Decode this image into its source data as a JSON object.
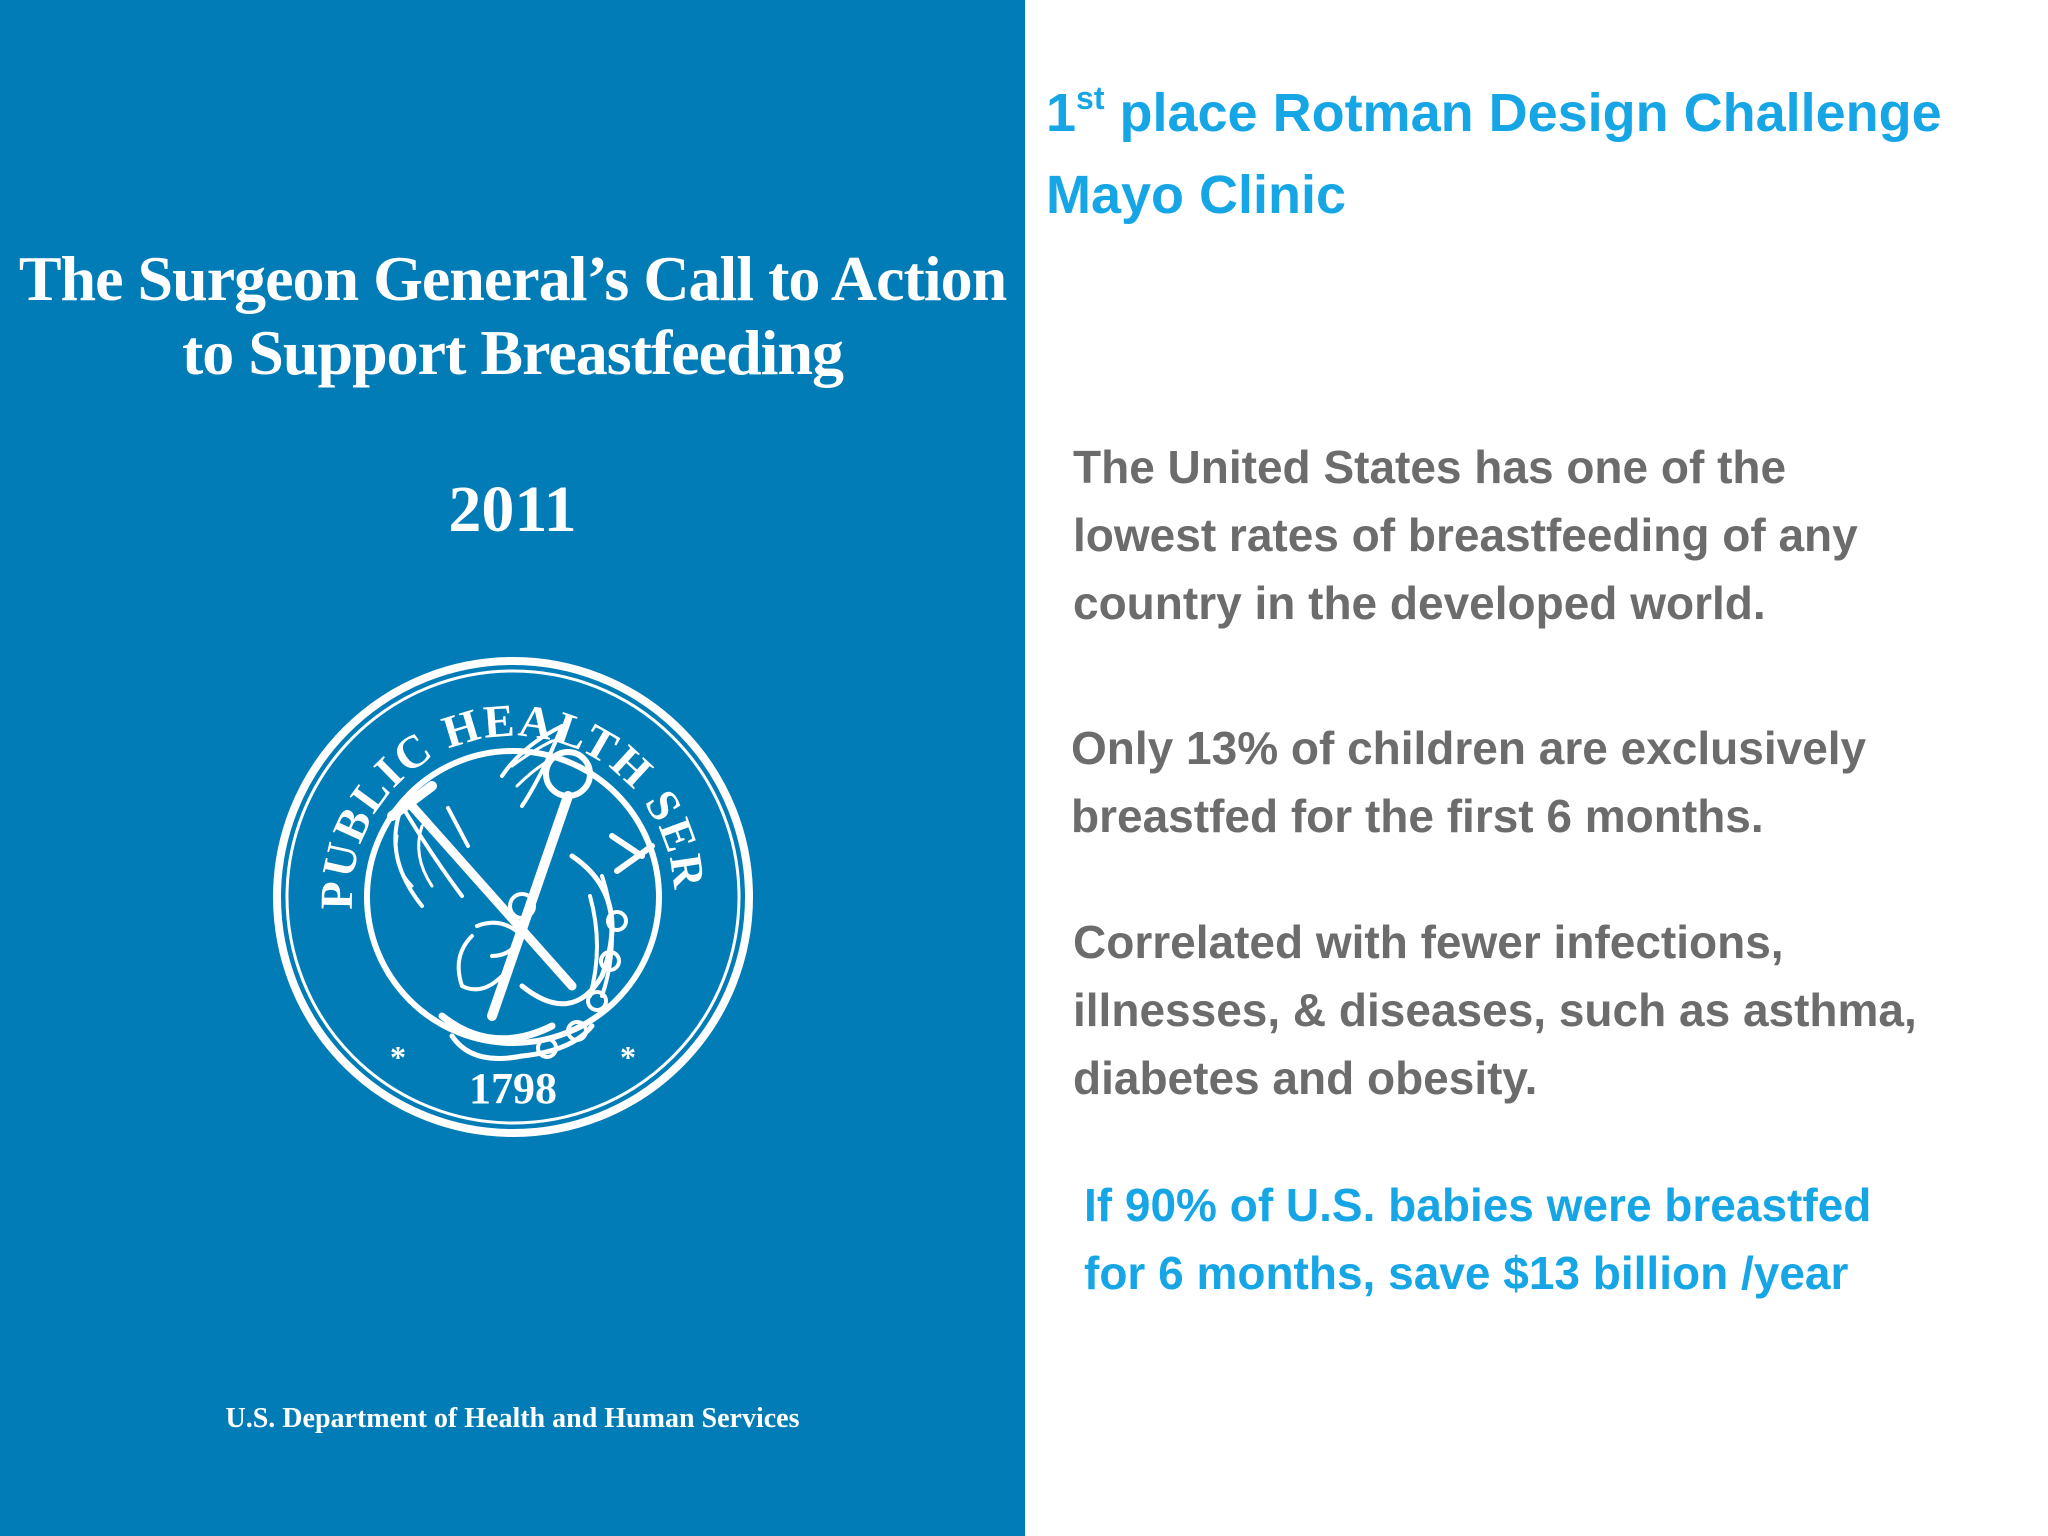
{
  "cover": {
    "title_line1": "The Surgeon General’s Call to Action",
    "title_line2": "to Support Breastfeeding",
    "year": "2011",
    "seal": {
      "ring_text": "U.S. PUBLIC HEALTH SERVICE",
      "bottom_text": "1798",
      "star": "*"
    },
    "department": "U.S. Department of Health and Human Services"
  },
  "award": {
    "ordinal_number": "1",
    "ordinal_suffix": "st",
    "line1_rest": " place Rotman Design Challenge",
    "line2": "Mayo Clinic"
  },
  "facts": {
    "fact1": [
      "The United States has one of the",
      "lowest rates of breastfeeding of any",
      "country in the developed world."
    ],
    "fact2": [
      "Only 13% of children are exclusively",
      "breastfed for the first 6 months."
    ],
    "fact3": [
      "Correlated with fewer infections,",
      "illnesses, & diseases, such as asthma,",
      "diabetes and obesity."
    ]
  },
  "savings": [
    "If 90% of U.S. babies were breastfed",
    "for 6 months, save $13 billion /year"
  ],
  "colors": {
    "cover_blue": "#027cb6",
    "accent_blue": "#16a6e6",
    "body_gray": "#6c6c6c"
  }
}
